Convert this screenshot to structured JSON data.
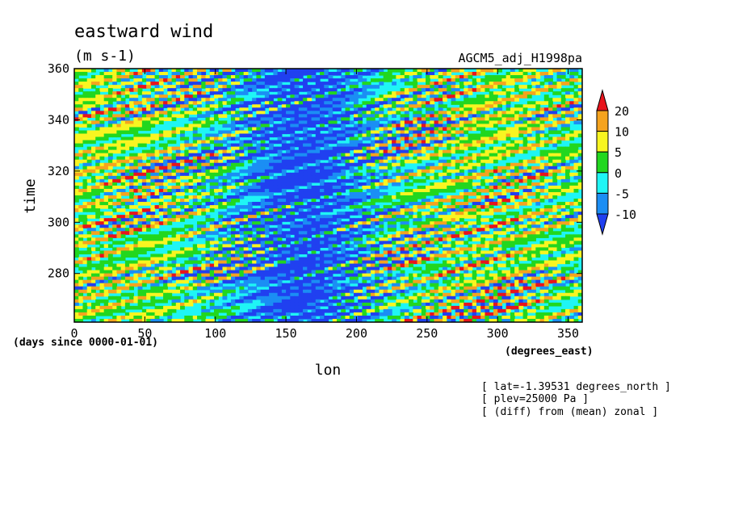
{
  "chart_data": {
    "type": "heatmap",
    "title": "eastward wind",
    "subtitle": "(m s-1)",
    "source_label": "AGCM5_adj_H1998pa",
    "xlabel": "lon",
    "xunits": "(degrees_east)",
    "ylabel": "time",
    "yunits": "(days since 0000-01-01)",
    "xlim": [
      0,
      360
    ],
    "ylim": [
      261,
      360
    ],
    "x_ticks": [
      "0",
      "50",
      "100",
      "150",
      "200",
      "250",
      "300",
      "350"
    ],
    "y_ticks": [
      "280",
      "300",
      "320",
      "340",
      "360"
    ],
    "colorbar": {
      "labels": [
        "20",
        "10",
        "5",
        "0",
        "-5",
        "-10"
      ],
      "colors": [
        "#e8141c",
        "#f5a31e",
        "#f8f521",
        "#22d71f",
        "#1ff5f5",
        "#1b8ef4",
        "#2040f0"
      ]
    },
    "annotations": [
      "[ lat=-1.39531 degrees_north ]",
      "[ plev=25000 Pa ]",
      "[ (diff) from (mean) zonal ]"
    ]
  }
}
